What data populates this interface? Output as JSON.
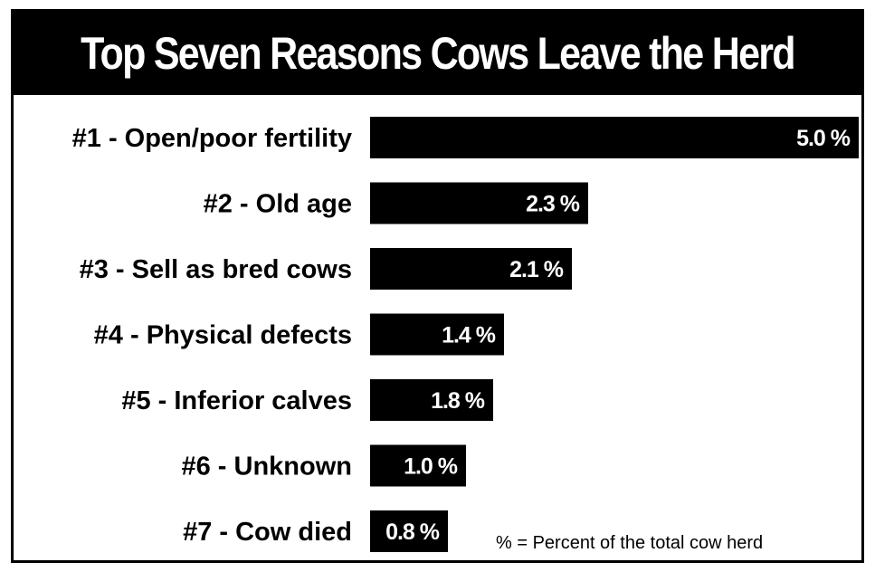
{
  "chart_data": {
    "type": "bar",
    "orientation": "horizontal",
    "title": "Top Seven Reasons Cows Leave the Herd",
    "categories": [
      "#1 - Open/poor fertility",
      "#2 - Old age",
      "#3 - Sell as bred cows",
      "#4 - Physical defects",
      "#5 - Inferior calves",
      "#6 - Unknown",
      "#7 - Cow died"
    ],
    "values": [
      5.0,
      2.3,
      2.1,
      1.4,
      1.8,
      1.0,
      0.8
    ],
    "value_labels": [
      "5.0 %",
      "2.3 %",
      "2.1 %",
      "1.4 %",
      "1.8 %",
      "1.0 %",
      "0.8 %"
    ],
    "unit": "%",
    "note": "% = Percent of the total cow herd",
    "bar_color": "#000000",
    "grid": false
  }
}
